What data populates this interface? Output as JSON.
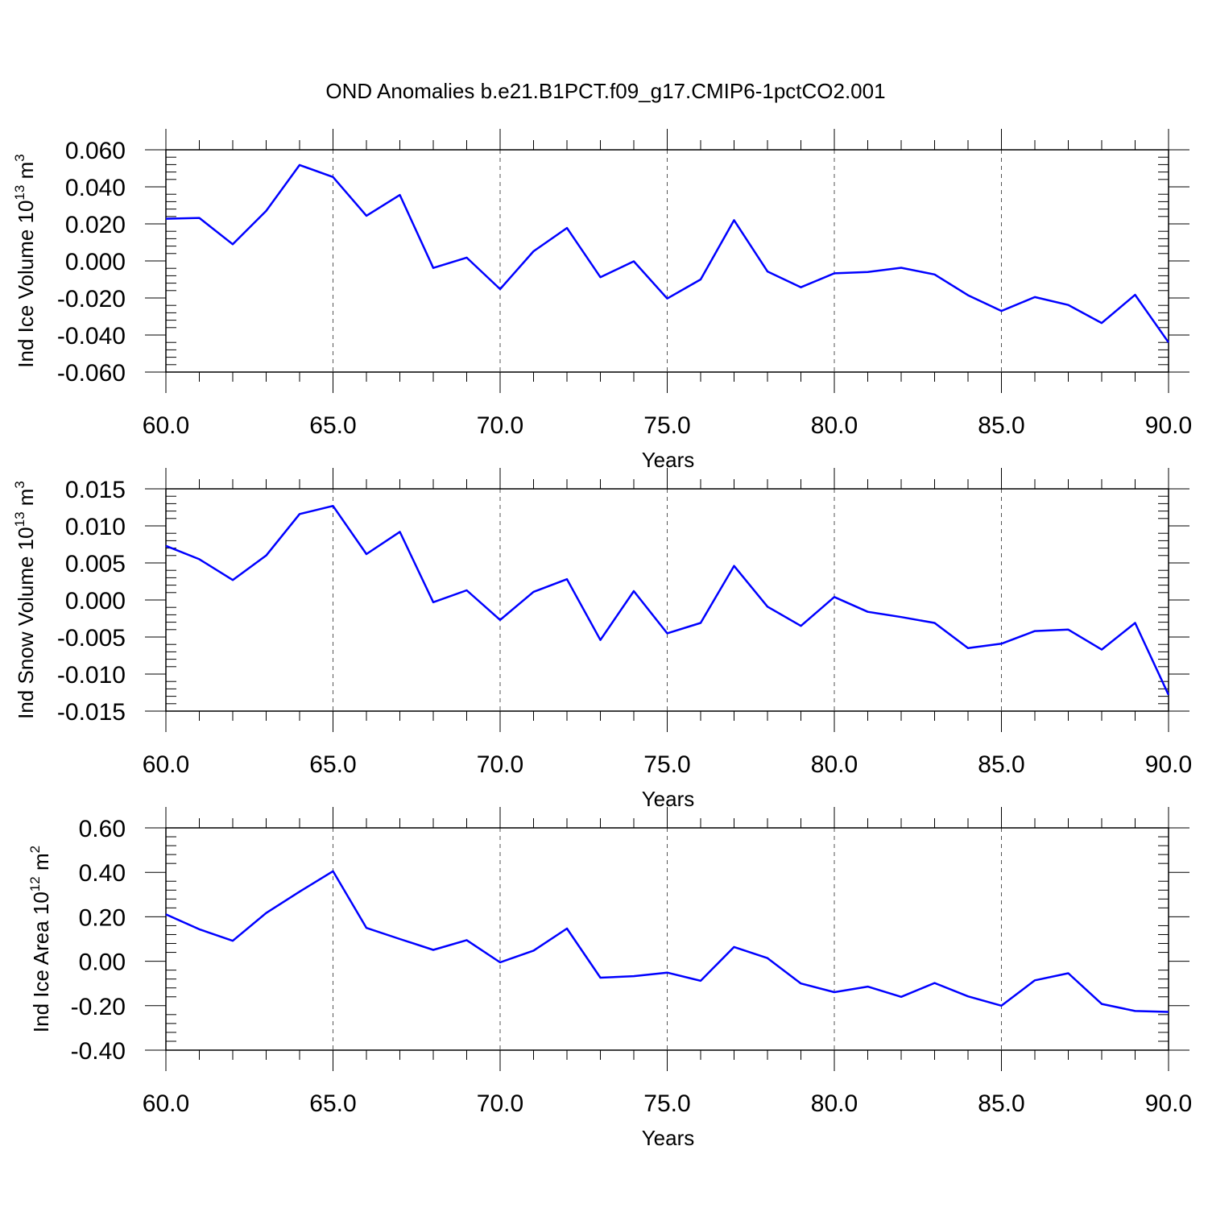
{
  "figure_title": "OND Anomalies b.e21.B1PCT.f09_g17.CMIP6-1pctCO2.001",
  "line_color": "#0000ff",
  "chart_data": [
    {
      "type": "line",
      "title": "OND Anomalies b.e21.B1PCT.f09_g17.CMIP6-1pctCO2.001",
      "xlabel": "Years",
      "ylabel_main": "Ind Ice Volume 10",
      "ylabel_exp": "13",
      "ylabel_unit": "m",
      "ylabel_unit_exp": "3",
      "xlim": [
        60,
        90
      ],
      "ylim": [
        -0.06,
        0.06
      ],
      "x_ticks": [
        60,
        65,
        70,
        75,
        80,
        85,
        90
      ],
      "x_tick_labels": [
        "60.0",
        "65.0",
        "70.0",
        "75.0",
        "80.0",
        "85.0",
        "90.0"
      ],
      "y_ticks": [
        -0.06,
        -0.04,
        -0.02,
        0.0,
        0.02,
        0.04,
        0.06
      ],
      "y_tick_labels": [
        "-0.060",
        "-0.040",
        "-0.020",
        "0.000",
        "0.020",
        "0.040",
        "0.060"
      ],
      "grid_x": true,
      "x": [
        60,
        61,
        62,
        63,
        64,
        65,
        66,
        67,
        68,
        69,
        70,
        71,
        72,
        73,
        74,
        75,
        76,
        77,
        78,
        79,
        80,
        81,
        82,
        83,
        84,
        85,
        86,
        87,
        88,
        89,
        90
      ],
      "series": [
        {
          "name": "Ind Ice Volume",
          "values": [
            0.0228,
            0.0232,
            0.009,
            0.027,
            0.0518,
            0.0453,
            0.0244,
            0.0356,
            -0.0038,
            0.0018,
            -0.0152,
            0.0052,
            0.0178,
            -0.0088,
            -0.0002,
            -0.0203,
            -0.01,
            0.022,
            -0.0057,
            -0.0142,
            -0.0067,
            -0.006,
            -0.0037,
            -0.0073,
            -0.0185,
            -0.027,
            -0.0195,
            -0.0238,
            -0.0335,
            -0.0183,
            -0.044
          ]
        }
      ]
    },
    {
      "type": "line",
      "xlabel": "Years",
      "ylabel_main": "Ind Snow Volume 10",
      "ylabel_exp": "13",
      "ylabel_unit": "m",
      "ylabel_unit_exp": "3",
      "xlim": [
        60,
        90
      ],
      "ylim": [
        -0.015,
        0.015
      ],
      "x_ticks": [
        60,
        65,
        70,
        75,
        80,
        85,
        90
      ],
      "x_tick_labels": [
        "60.0",
        "65.0",
        "70.0",
        "75.0",
        "80.0",
        "85.0",
        "90.0"
      ],
      "y_ticks": [
        -0.015,
        -0.01,
        -0.005,
        0.0,
        0.005,
        0.01,
        0.015
      ],
      "y_tick_labels": [
        "-0.015",
        "-0.010",
        "-0.005",
        "0.000",
        "0.005",
        "0.010",
        "0.015"
      ],
      "grid_x": true,
      "x": [
        60,
        61,
        62,
        63,
        64,
        65,
        66,
        67,
        68,
        69,
        70,
        71,
        72,
        73,
        74,
        75,
        76,
        77,
        78,
        79,
        80,
        81,
        82,
        83,
        84,
        85,
        86,
        87,
        88,
        89,
        90
      ],
      "series": [
        {
          "name": "Ind Snow Volume",
          "values": [
            0.0073,
            0.0055,
            0.0027,
            0.006,
            0.0116,
            0.0127,
            0.0062,
            0.0092,
            -0.0003,
            0.0013,
            -0.0027,
            0.0011,
            0.0028,
            -0.0054,
            0.0012,
            -0.0045,
            -0.0031,
            0.0046,
            -0.0009,
            -0.0035,
            0.0004,
            -0.0016,
            -0.0023,
            -0.0031,
            -0.0065,
            -0.0059,
            -0.0042,
            -0.004,
            -0.0067,
            -0.0031,
            -0.0128
          ]
        }
      ]
    },
    {
      "type": "line",
      "xlabel": "Years",
      "ylabel_main": "Ind Ice Area 10",
      "ylabel_exp": "12",
      "ylabel_unit": "m",
      "ylabel_unit_exp": "2",
      "xlim": [
        60,
        90
      ],
      "ylim": [
        -0.4,
        0.6
      ],
      "x_ticks": [
        60,
        65,
        70,
        75,
        80,
        85,
        90
      ],
      "x_tick_labels": [
        "60.0",
        "65.0",
        "70.0",
        "75.0",
        "80.0",
        "85.0",
        "90.0"
      ],
      "y_ticks": [
        -0.4,
        -0.2,
        0.0,
        0.2,
        0.4,
        0.6
      ],
      "y_tick_labels": [
        "-0.40",
        "-0.20",
        "0.00",
        "0.20",
        "0.40",
        "0.60"
      ],
      "grid_x": true,
      "x": [
        60,
        61,
        62,
        63,
        64,
        65,
        66,
        67,
        68,
        69,
        70,
        71,
        72,
        73,
        74,
        75,
        76,
        77,
        78,
        79,
        80,
        81,
        82,
        83,
        84,
        85,
        86,
        87,
        88,
        89,
        90
      ],
      "series": [
        {
          "name": "Ind Ice Area",
          "values": [
            0.211,
            0.144,
            0.092,
            0.217,
            0.313,
            0.405,
            0.15,
            0.1,
            0.051,
            0.095,
            -0.005,
            0.048,
            0.147,
            -0.074,
            -0.067,
            -0.051,
            -0.088,
            0.064,
            0.014,
            -0.1,
            -0.139,
            -0.114,
            -0.16,
            -0.098,
            -0.158,
            -0.2,
            -0.086,
            -0.054,
            -0.192,
            -0.224,
            -0.228
          ]
        }
      ]
    }
  ]
}
